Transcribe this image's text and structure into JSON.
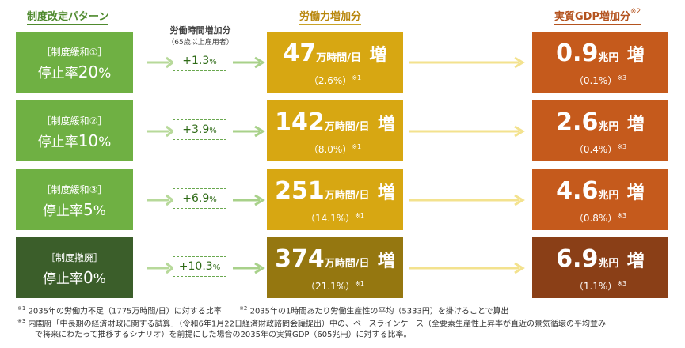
{
  "headers": {
    "pattern": "制度改定パターン",
    "hours_increase_title": "労働時間増加分",
    "hours_increase_sub": "（65歳以上雇用者）",
    "labor": "労働力増加分",
    "gdp": "実質GDP増加分",
    "gdp_mark": "※2"
  },
  "units": {
    "hours": "万時間/日",
    "increase": "増",
    "yen": "兆円",
    "mark1": "※1",
    "mark3": "※3",
    "percent": "%"
  },
  "colors": {
    "green_light": "#6fb043",
    "green_dark": "#3b5e2a",
    "gold": "#d7a712",
    "gold_dark": "#957710",
    "rust": "#c55a1c",
    "rust_dark": "#8a3f17"
  },
  "rows": [
    {
      "label": "［制度緩和①］",
      "rate_prefix": "停止率",
      "rate_value": "20",
      "rate_unit": "%",
      "increase": "+1.3",
      "hours": "47",
      "hours_pct": "（2.6%）",
      "gdp": "0.9",
      "gdp_pct": "（0.1%）"
    },
    {
      "label": "［制度緩和②］",
      "rate_prefix": "停止率",
      "rate_value": "10",
      "rate_unit": "%",
      "increase": "+3.9",
      "hours": "142",
      "hours_pct": "（8.0%）",
      "gdp": "2.6",
      "gdp_pct": "（0.4%）"
    },
    {
      "label": "［制度緩和③］",
      "rate_prefix": "停止率",
      "rate_value": "5",
      "rate_unit": "%",
      "increase": "+6.9",
      "hours": "251",
      "hours_pct": "（14.1%）",
      "gdp": "4.6",
      "gdp_pct": "（0.8%）"
    },
    {
      "label": "［制度撤廃］",
      "rate_prefix": "停止率",
      "rate_value": "0",
      "rate_unit": "%",
      "increase": "+10.3",
      "hours": "374",
      "hours_pct": "（21.1%）",
      "gdp": "6.9",
      "gdp_pct": "（1.1%）"
    }
  ],
  "notes": {
    "n1_mark": "※1",
    "n1": "2035年の労働力不足（1775万時間/日）に対する比率",
    "n2_mark": "※2",
    "n2": "2035年の1時間あたり労働生産性の平均（5333円）を掛けることで算出",
    "n3_mark": "※3",
    "n3_line1": "内閣府「中長期の経済財政に関する試算」（令和6年1月22日経済財政諮問会議提出）中の、ベースラインケース（全要素生産性上昇率が直近の景気循環の平均並み",
    "n3_line2": "で将来にわたって推移するシナリオ）を前提にした場合の2035年の実質GDP（605兆円）に対する比率。"
  }
}
